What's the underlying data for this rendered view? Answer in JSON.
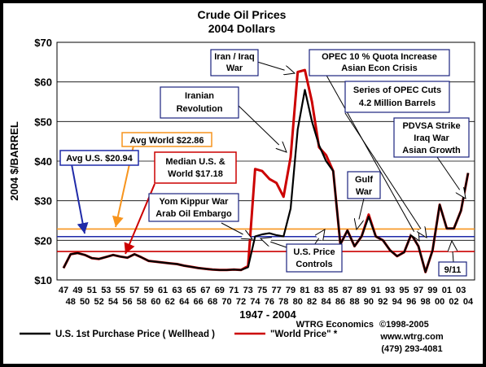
{
  "chart_data": {
    "type": "line",
    "title": "Crude Oil Prices",
    "subtitle": "2004 Dollars",
    "xlabel": "1947 - 2004",
    "ylabel": "2004 $/BARREL",
    "ylim": [
      10,
      70
    ],
    "yticks": [
      "$10",
      "$20",
      "$30",
      "$40",
      "$50",
      "$60",
      "$70"
    ],
    "x_ticks_top": [
      "47",
      "49",
      "51",
      "53",
      "55",
      "57",
      "59",
      "61",
      "63",
      "65",
      "67",
      "69",
      "71",
      "73",
      "75",
      "77",
      "79",
      "81",
      "83",
      "85",
      "87",
      "89",
      "91",
      "93",
      "95",
      "97",
      "99",
      "01",
      "03"
    ],
    "x_ticks_bottom": [
      "48",
      "50",
      "52",
      "54",
      "56",
      "58",
      "60",
      "62",
      "64",
      "66",
      "68",
      "70",
      "72",
      "74",
      "76",
      "78",
      "80",
      "82",
      "84",
      "86",
      "88",
      "90",
      "92",
      "94",
      "96",
      "98",
      "00",
      "02",
      "04"
    ],
    "series": [
      {
        "name": "U.S. 1st Purchase Price ( Wellhead )",
        "color": "#000000",
        "x": [
          1947,
          1948,
          1949,
          1950,
          1951,
          1952,
          1953,
          1954,
          1955,
          1956,
          1957,
          1958,
          1959,
          1960,
          1961,
          1962,
          1963,
          1964,
          1965,
          1966,
          1967,
          1968,
          1969,
          1970,
          1971,
          1972,
          1973,
          1974,
          1975,
          1976,
          1977,
          1978,
          1979,
          1980,
          1981,
          1982,
          1983,
          1984,
          1985,
          1986,
          1987,
          1988,
          1989,
          1990,
          1991,
          1992,
          1993,
          1994,
          1995,
          1996,
          1997,
          1998,
          1999,
          2000,
          2001,
          2002,
          2003,
          2004
        ],
        "values": [
          13,
          16.5,
          16.8,
          16.3,
          15.5,
          15.3,
          15.8,
          16.3,
          15.9,
          15.6,
          16.5,
          15.7,
          14.8,
          14.6,
          14.4,
          14.2,
          14,
          13.6,
          13.3,
          13,
          12.8,
          12.6,
          12.5,
          12.5,
          12.6,
          12.5,
          13.2,
          21,
          21.5,
          21.8,
          21.3,
          21,
          28,
          48,
          58,
          50,
          44,
          40,
          37.5,
          19,
          22.5,
          18.5,
          21,
          26,
          21,
          20,
          17.5,
          16,
          17,
          21.5,
          18.5,
          12,
          17.5,
          29,
          23,
          23,
          27.5,
          37
        ]
      },
      {
        "name": "\"World Price\" *",
        "color": "#cc0000",
        "x": [
          1947,
          1948,
          1949,
          1950,
          1951,
          1952,
          1953,
          1954,
          1955,
          1956,
          1957,
          1958,
          1959,
          1960,
          1961,
          1962,
          1963,
          1964,
          1965,
          1966,
          1967,
          1968,
          1969,
          1970,
          1971,
          1972,
          1973,
          1974,
          1975,
          1976,
          1977,
          1978,
          1979,
          1980,
          1981,
          1982,
          1983,
          1984,
          1985,
          1986,
          1987,
          1988,
          1989,
          1990,
          1991,
          1992,
          1993,
          1994,
          1995,
          1996,
          1997,
          1998,
          1999,
          2000,
          2001,
          2002,
          2003,
          2004
        ],
        "values": [
          13,
          16.5,
          16.8,
          16.3,
          15.5,
          15.3,
          15.8,
          16.3,
          15.9,
          15.6,
          16.5,
          15.7,
          14.8,
          14.6,
          14.4,
          14.2,
          14,
          13.6,
          13.3,
          13,
          12.8,
          12.6,
          12.5,
          12.5,
          12.6,
          12.5,
          13.5,
          38,
          37.5,
          35.5,
          34.5,
          31,
          41,
          62.5,
          63,
          55,
          43.5,
          41.5,
          37.5,
          19,
          22.5,
          18.5,
          21,
          26.5,
          21,
          20,
          17.5,
          16,
          17,
          21.5,
          18.5,
          12,
          17.5,
          29,
          23,
          23,
          27.5,
          37
        ]
      }
    ],
    "reference_lines": [
      {
        "label": "Avg World $22.86",
        "value": 22.86,
        "color": "#f7941d"
      },
      {
        "label": "Avg U.S. $20.94",
        "value": 20.94,
        "color": "#1f2aa8"
      },
      {
        "label": "Median U.S. & World $17.18",
        "value": 17.18,
        "color": "#cc0000"
      }
    ],
    "annotations": [
      {
        "id": "iran-iraq",
        "lines": [
          "Iran / Iraq",
          "War"
        ]
      },
      {
        "id": "opec-quota",
        "lines": [
          "OPEC 10 % Quota Increase",
          "Asian Econ Crisis"
        ]
      },
      {
        "id": "iranian-rev",
        "lines": [
          "Iranian",
          "Revolution"
        ]
      },
      {
        "id": "opec-cuts",
        "lines": [
          "Series of OPEC Cuts",
          "4.2 Million Barrels"
        ]
      },
      {
        "id": "avg-world",
        "lines": [
          "Avg World $22.86"
        ]
      },
      {
        "id": "avg-us",
        "lines": [
          "Avg U.S. $20.94"
        ]
      },
      {
        "id": "median",
        "lines": [
          "Median U.S. &",
          "World  $17.18"
        ]
      },
      {
        "id": "pdvsa",
        "lines": [
          "PDVSA Strike",
          "Iraq War",
          "Asian Growth"
        ]
      },
      {
        "id": "gulf",
        "lines": [
          "Gulf",
          "War"
        ]
      },
      {
        "id": "yom-kippur",
        "lines": [
          "Yom Kippur War",
          "Arab Oil Embargo"
        ]
      },
      {
        "id": "price-controls",
        "lines": [
          "U.S. Price",
          "Controls"
        ]
      },
      {
        "id": "nine-eleven",
        "lines": [
          "9/11"
        ]
      }
    ],
    "grid": true,
    "legend_position": "bottom"
  },
  "credits": {
    "company": "WTRG Economics",
    "copyright": "©1998-2005",
    "website": "www.wtrg.com",
    "phone": "(479) 293-4081"
  }
}
